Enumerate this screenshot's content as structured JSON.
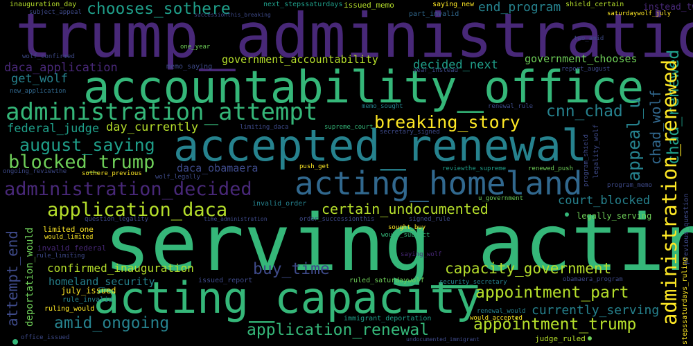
{
  "words": {
    "w01": "trump_administration",
    "w02": "serving_acting",
    "w03": "accountability_office",
    "w04": "accepted_renewal",
    "w05": "acting_capacity",
    "w06": "acting_homeland",
    "w07": "administration_attempt",
    "w08": "administration_decided",
    "w09": "application_daca",
    "w10": "blocked_trump",
    "w11": "breaking_story",
    "w12": "august_saying",
    "w13": "chooses_sothere",
    "w14": "end_program",
    "w15": "government_accountability",
    "w16": "government_chooses",
    "w17": "daca_application",
    "w18": "decided_next",
    "w19": "cnn_chad",
    "w20": "federal_judge",
    "w21": "day_currently",
    "w22": "get_wolf",
    "w23": "certain_undocumented",
    "w24": "court_blocked",
    "w25": "daca_obamaera",
    "w26": "capacity_government",
    "w27": "appointment_part",
    "w28": "confirmed_inauguration",
    "w29": "buy_time",
    "w30": "homeland_security",
    "w31": "amid_ongoing",
    "w32": "application_renewal",
    "w33": "appointment_trump",
    "w34": "currently_serving",
    "w35": "inauguration_day",
    "w36": "subject_appeal",
    "w37": "successionthis_breaking",
    "w38": "next_stepssaturdays",
    "w39": "issued_memo",
    "w40": "saying_new",
    "w41": "part_invalid",
    "w42": "shield_certain",
    "w43": "instead_two",
    "w44": "saturdaywolf_july",
    "w45": "two_amid",
    "w46": "wolf_confirmed",
    "w47": "one_year",
    "w48": "memo_saying",
    "w49": "year_instead",
    "w50": "report_august",
    "w51": "new_application",
    "w52": "memo_sought",
    "w53": "renewal_rule",
    "w54": "limiting_daca",
    "w55": "supreme_court",
    "w56": "secretary_signed",
    "w57": "ongoing_reviewthe",
    "w58": "sothere_previous",
    "w59": "push_get",
    "w60": "reviewthe_supreme",
    "w61": "renewed_push",
    "w62": "wolf_legally",
    "w63": "u_government",
    "w64": "program_memo",
    "w65": "invalid_order",
    "w66": "question_legality",
    "w67": "time_administration",
    "w68": "order_successionthis",
    "w69": "signed_rule",
    "w70": "legally_serving",
    "w71": "limited_one",
    "w72": "would_limited",
    "w73": "sought_buy",
    "w74": "would_subject",
    "w75": "invalid_federal",
    "w76": "rule_limiting",
    "w77": "saying_wolf",
    "w78": "issued_report",
    "w79": "security_secretary",
    "w80": "ruled_saturdaywolf",
    "w81": "obamaera_program",
    "w82": "july_issued",
    "w83": "rule_invalid",
    "w84": "ruling_would",
    "w85": "renewal_would",
    "w86": "would_accepted",
    "w87": "immigrant_deportation",
    "w88": "judge_ruled",
    "w89": "office_issued",
    "w90": "undocumented_immigrant",
    "w91": "appeal_u",
    "w92": "chad_wolf",
    "w93": "chad_renewed",
    "w94": "administration_renewed",
    "w95": "attempt_end",
    "w96": "deportation_would",
    "w97": "legality_wolf",
    "w98": "program_shield",
    "w99": "stepssaturdays_ruling",
    "w100": "previous_question"
  },
  "colors": {
    "dark_purple": "#440154",
    "purple": "#482878",
    "indigo": "#3e4a89",
    "blue": "#31688e",
    "teal": "#26828e",
    "green_teal": "#1f9e89",
    "green": "#35b779",
    "light_green": "#6ece58",
    "lime": "#b5de2b",
    "yellow": "#fde725",
    "background": "#000000"
  }
}
